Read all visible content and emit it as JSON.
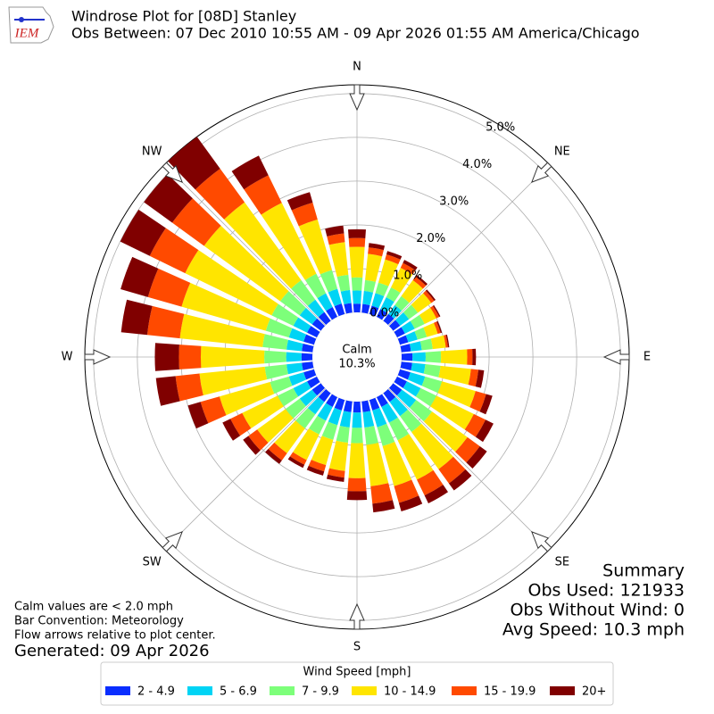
{
  "chart_data": {
    "type": "windrose",
    "title": "Windrose Plot for [08D] Stanley",
    "subtitle": "Obs Between: 07 Dec 2010 10:55 AM - 09 Apr 2026 01:55 AM America/Chicago",
    "logo_text": "IEM",
    "x": [
      0,
      10,
      20,
      30,
      40,
      50,
      60,
      70,
      80,
      90,
      100,
      110,
      120,
      130,
      140,
      150,
      160,
      170,
      180,
      190,
      200,
      210,
      220,
      230,
      240,
      250,
      260,
      270,
      280,
      290,
      300,
      310,
      320,
      330,
      340,
      350
    ],
    "xticks": [
      {
        "value": 0,
        "label": "N"
      },
      {
        "value": 45,
        "label": "NE"
      },
      {
        "value": 90,
        "label": "E"
      },
      {
        "value": 135,
        "label": "SE"
      },
      {
        "value": 180,
        "label": "S"
      },
      {
        "value": 225,
        "label": "SW"
      },
      {
        "value": 270,
        "label": "W"
      },
      {
        "value": 315,
        "label": "NW"
      }
    ],
    "ylim": [
      0,
      5.2
    ],
    "yticks": [
      {
        "value": 0,
        "label": "0.0%"
      },
      {
        "value": 1,
        "label": "1.0%"
      },
      {
        "value": 2,
        "label": "2.0%"
      },
      {
        "value": 3,
        "label": "3.0%"
      },
      {
        "value": 4,
        "label": "4.0%"
      },
      {
        "value": 5,
        "label": "5.0%"
      }
    ],
    "grid": true,
    "calm": {
      "label": "Calm",
      "value": 10.3,
      "value_label": "10.3%"
    },
    "legend_title": "Wind Speed [mph]",
    "series": [
      {
        "name": "2 - 4.9",
        "color": "#0a2eff",
        "values": [
          0.2,
          0.2,
          0.2,
          0.2,
          0.2,
          0.2,
          0.2,
          0.2,
          0.22,
          0.25,
          0.25,
          0.25,
          0.25,
          0.25,
          0.25,
          0.25,
          0.25,
          0.25,
          0.25,
          0.25,
          0.25,
          0.25,
          0.25,
          0.25,
          0.25,
          0.25,
          0.25,
          0.25,
          0.25,
          0.25,
          0.25,
          0.25,
          0.25,
          0.25,
          0.25,
          0.22
        ]
      },
      {
        "name": "5 - 6.9",
        "color": "#00d4f5",
        "values": [
          0.3,
          0.3,
          0.3,
          0.3,
          0.25,
          0.25,
          0.25,
          0.22,
          0.25,
          0.3,
          0.3,
          0.35,
          0.35,
          0.4,
          0.4,
          0.4,
          0.4,
          0.35,
          0.35,
          0.35,
          0.35,
          0.35,
          0.35,
          0.35,
          0.35,
          0.35,
          0.35,
          0.35,
          0.35,
          0.35,
          0.35,
          0.35,
          0.35,
          0.35,
          0.35,
          0.3
        ]
      },
      {
        "name": "7 - 9.9",
        "color": "#7dff7a",
        "values": [
          0.3,
          0.25,
          0.25,
          0.25,
          0.25,
          0.25,
          0.25,
          0.22,
          0.25,
          0.35,
          0.35,
          0.4,
          0.4,
          0.45,
          0.45,
          0.45,
          0.45,
          0.4,
          0.35,
          0.35,
          0.35,
          0.35,
          0.4,
          0.4,
          0.4,
          0.45,
          0.5,
          0.5,
          0.55,
          0.55,
          0.55,
          0.55,
          0.55,
          0.5,
          0.45,
          0.35
        ]
      },
      {
        "name": "10 - 14.9",
        "color": "#ffe500",
        "values": [
          0.7,
          0.6,
          0.55,
          0.5,
          0.45,
          0.38,
          0.3,
          0.26,
          0.3,
          0.6,
          0.7,
          0.8,
          0.95,
          1.0,
          1.05,
          1.0,
          0.95,
          0.95,
          0.8,
          0.65,
          0.6,
          0.65,
          0.7,
          0.8,
          0.9,
          1.2,
          1.5,
          1.45,
          1.9,
          2.0,
          2.2,
          2.15,
          2.2,
          1.8,
          1.2,
          0.75
        ]
      },
      {
        "name": "15 - 19.9",
        "color": "#ff4a00",
        "values": [
          0.2,
          0.15,
          0.12,
          0.12,
          0.1,
          0.08,
          0.07,
          0.07,
          0.05,
          0.12,
          0.17,
          0.25,
          0.3,
          0.35,
          0.4,
          0.4,
          0.4,
          0.4,
          0.3,
          0.15,
          0.15,
          0.12,
          0.2,
          0.25,
          0.3,
          0.45,
          0.55,
          0.5,
          0.75,
          0.8,
          0.9,
          0.9,
          0.95,
          0.7,
          0.4,
          0.2
        ]
      },
      {
        "name": "20+",
        "color": "#800000",
        "values": [
          0.2,
          0.1,
          0.08,
          0.08,
          0.05,
          0.04,
          0.03,
          0.03,
          0.03,
          0.08,
          0.13,
          0.15,
          0.2,
          0.2,
          0.2,
          0.2,
          0.2,
          0.2,
          0.2,
          0.1,
          0.1,
          0.08,
          0.1,
          0.15,
          0.2,
          0.3,
          0.45,
          0.55,
          0.6,
          0.65,
          0.75,
          0.8,
          0.9,
          0.5,
          0.25,
          0.18
        ]
      }
    ],
    "notes": [
      "Calm values are < 2.0 mph",
      "Bar Convention: Meteorology",
      "Flow arrows relative to plot center."
    ],
    "generated": "Generated: 09 Apr 2026",
    "summary": [
      "Summary",
      "Obs Used: 121933",
      "Obs Without Wind: 0",
      "Avg Speed: 10.3 mph"
    ]
  }
}
